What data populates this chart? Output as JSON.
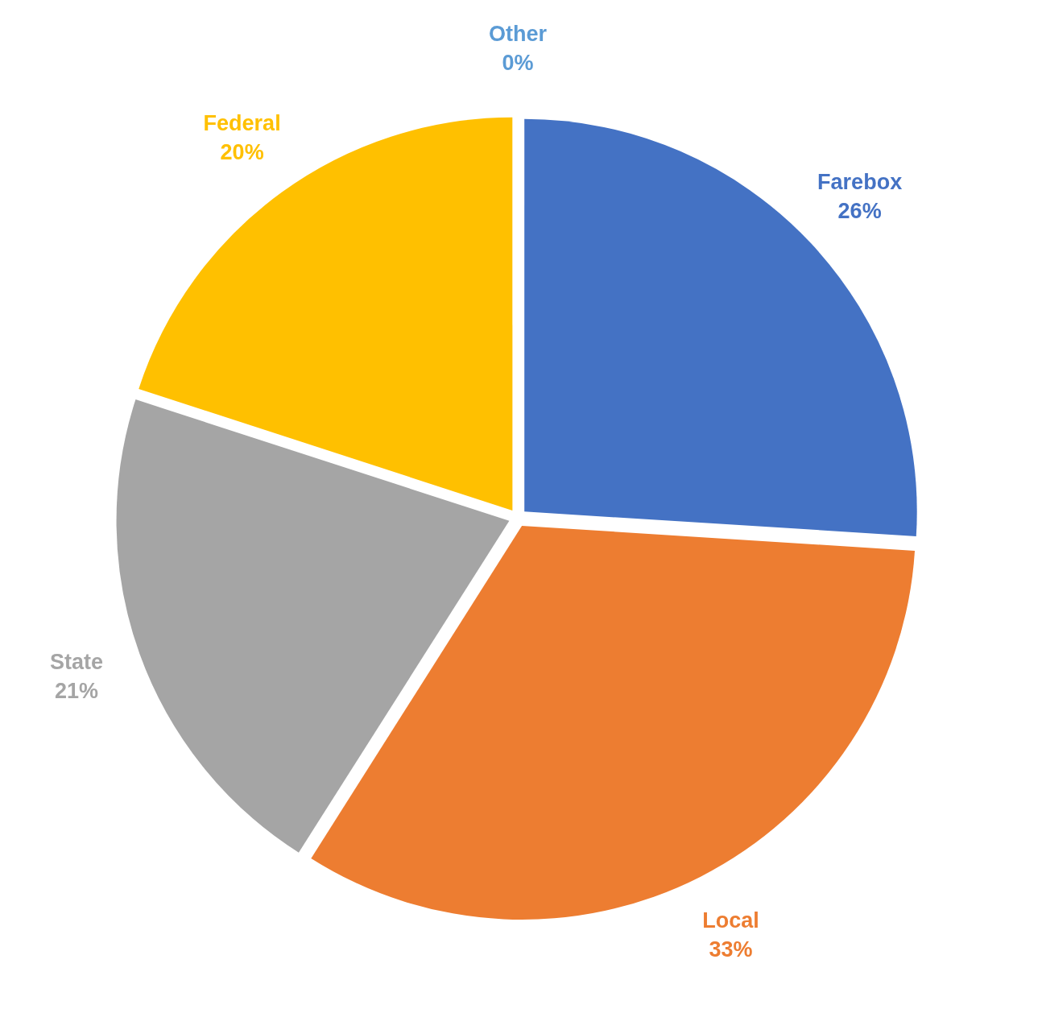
{
  "chart_data": {
    "type": "pie",
    "categories": [
      "Farebox",
      "Local",
      "State",
      "Federal",
      "Other"
    ],
    "values": [
      26,
      33,
      21,
      20,
      0
    ],
    "colors": [
      "#4472c4",
      "#ed7d31",
      "#a5a5a5",
      "#ffc000",
      "#5b9bd5"
    ],
    "value_labels": [
      "26%",
      "33%",
      "21%",
      "20%",
      "0%"
    ],
    "legend": false
  }
}
